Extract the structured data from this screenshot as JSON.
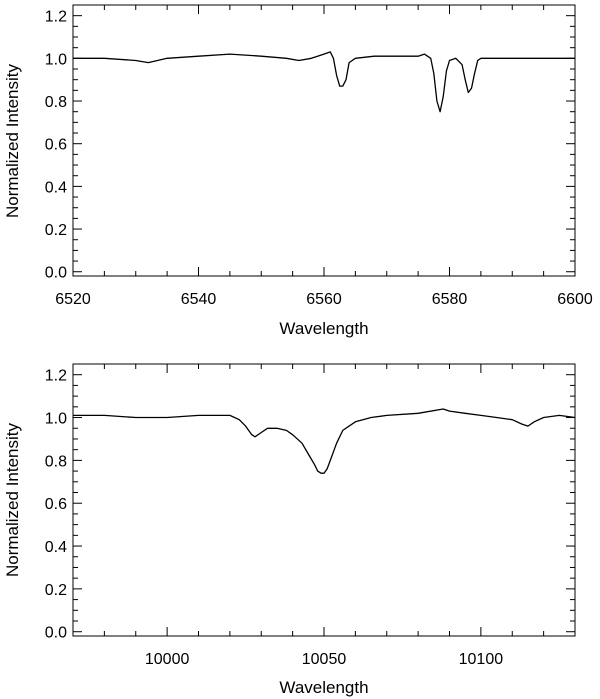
{
  "chart_data": [
    {
      "type": "line",
      "xlabel": "Wavelength",
      "ylabel": "Normalized Intensity",
      "xlim": [
        6520,
        6600
      ],
      "ylim": [
        -0.02,
        1.25
      ],
      "xticks": [
        6520,
        6540,
        6560,
        6580,
        6600
      ],
      "xtick_labels": [
        "6520",
        "6540",
        "6560",
        "6580",
        "6600"
      ],
      "yticks": [
        0.0,
        0.2,
        0.4,
        0.6,
        0.8,
        1.0,
        1.2
      ],
      "ytick_labels": [
        "0.0",
        "0.2",
        "0.4",
        "0.6",
        "0.8",
        "1.0",
        "1.2"
      ],
      "grid": false,
      "series": [
        {
          "x": [
            6520,
            6525,
            6530,
            6532,
            6535,
            6540,
            6545,
            6550,
            6554,
            6556,
            6558,
            6560,
            6561,
            6561.5,
            6562,
            6562.5,
            6563,
            6563.5,
            6564,
            6565,
            6568,
            6570,
            6575,
            6576,
            6577,
            6577.5,
            6578,
            6578.5,
            6579,
            6579.5,
            6580,
            6581,
            6582,
            6582.5,
            6583,
            6583.5,
            6584,
            6584.5,
            6585,
            6586,
            6590,
            6595,
            6600
          ],
          "y": [
            1.0,
            1.0,
            0.99,
            0.98,
            1.0,
            1.01,
            1.02,
            1.01,
            1.0,
            0.99,
            1.0,
            1.02,
            1.03,
            1.0,
            0.92,
            0.87,
            0.87,
            0.9,
            0.98,
            1.0,
            1.01,
            1.01,
            1.01,
            1.02,
            1.0,
            0.93,
            0.8,
            0.75,
            0.82,
            0.94,
            0.99,
            1.0,
            0.97,
            0.9,
            0.84,
            0.86,
            0.93,
            0.99,
            1.0,
            1.0,
            1.0,
            1.0,
            1.0
          ]
        }
      ]
    },
    {
      "type": "line",
      "xlabel": "Wavelength",
      "ylabel": "Normalized Intensity",
      "xlim": [
        9970,
        10130
      ],
      "ylim": [
        -0.02,
        1.25
      ],
      "xticks": [
        10000,
        10050,
        10100
      ],
      "xtick_labels": [
        "10000",
        "10050",
        "10100"
      ],
      "yticks": [
        0.0,
        0.2,
        0.4,
        0.6,
        0.8,
        1.0,
        1.2
      ],
      "ytick_labels": [
        "0.0",
        "0.2",
        "0.4",
        "0.6",
        "0.8",
        "1.0",
        "1.2"
      ],
      "grid": false,
      "series": [
        {
          "x": [
            9970,
            9980,
            9990,
            10000,
            10010,
            10020,
            10023,
            10025,
            10027,
            10028,
            10030,
            10032,
            10035,
            10038,
            10040,
            10043,
            10045,
            10047,
            10048,
            10049,
            10050,
            10051,
            10052,
            10054,
            10056,
            10060,
            10065,
            10070,
            10080,
            10088,
            10090,
            10095,
            10100,
            10105,
            10110,
            10113,
            10115,
            10117,
            10120,
            10125,
            10130
          ],
          "y": [
            1.01,
            1.01,
            1.0,
            1.0,
            1.01,
            1.01,
            0.99,
            0.96,
            0.92,
            0.91,
            0.93,
            0.95,
            0.95,
            0.94,
            0.92,
            0.88,
            0.83,
            0.78,
            0.75,
            0.74,
            0.74,
            0.76,
            0.8,
            0.88,
            0.94,
            0.98,
            1.0,
            1.01,
            1.02,
            1.04,
            1.03,
            1.02,
            1.01,
            1.0,
            0.99,
            0.97,
            0.96,
            0.98,
            1.0,
            1.01,
            1.0
          ]
        }
      ]
    }
  ]
}
